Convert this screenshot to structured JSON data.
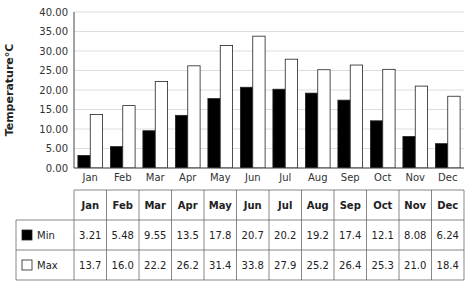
{
  "chart_data": {
    "type": "bar",
    "y_label": "Temperature°C",
    "categories": [
      "Jan",
      "Feb",
      "Mar",
      "Apr",
      "May",
      "Jun",
      "Jul",
      "Aug",
      "Sep",
      "Oct",
      "Nov",
      "Dec"
    ],
    "series": [
      {
        "name": "Min",
        "color": "#000000",
        "values": [
          3.21,
          5.48,
          9.55,
          13.5,
          17.8,
          20.7,
          20.2,
          19.2,
          17.4,
          12.1,
          8.08,
          6.24
        ],
        "value_labels": [
          "3.21",
          "5.48",
          "9.55",
          "13.5",
          "17.8",
          "20.7",
          "20.2",
          "19.2",
          "17.4",
          "12.1",
          "8.08",
          "6.24"
        ]
      },
      {
        "name": "Max",
        "color": "#ffffff",
        "values": [
          13.7,
          16.0,
          22.2,
          26.2,
          31.4,
          33.8,
          27.9,
          25.2,
          26.4,
          25.3,
          21.0,
          18.4
        ],
        "value_labels": [
          "13.7",
          "16.0",
          "22.2",
          "26.2",
          "31.4",
          "33.8",
          "27.9",
          "25.2",
          "26.4",
          "25.3",
          "21.0",
          "18.4"
        ]
      }
    ],
    "ylim": [
      0,
      40
    ],
    "yticks": [
      {
        "value": 0,
        "label": "0.00"
      },
      {
        "value": 5,
        "label": "5.00"
      },
      {
        "value": 10,
        "label": "10.00"
      },
      {
        "value": 15,
        "label": "15.00"
      },
      {
        "value": 20,
        "label": "20.00"
      },
      {
        "value": 25,
        "label": "25.00"
      },
      {
        "value": 30,
        "label": "30.00"
      },
      {
        "value": 35,
        "label": "35.00"
      },
      {
        "value": 40,
        "label": "40.00"
      }
    ],
    "grid": true
  }
}
